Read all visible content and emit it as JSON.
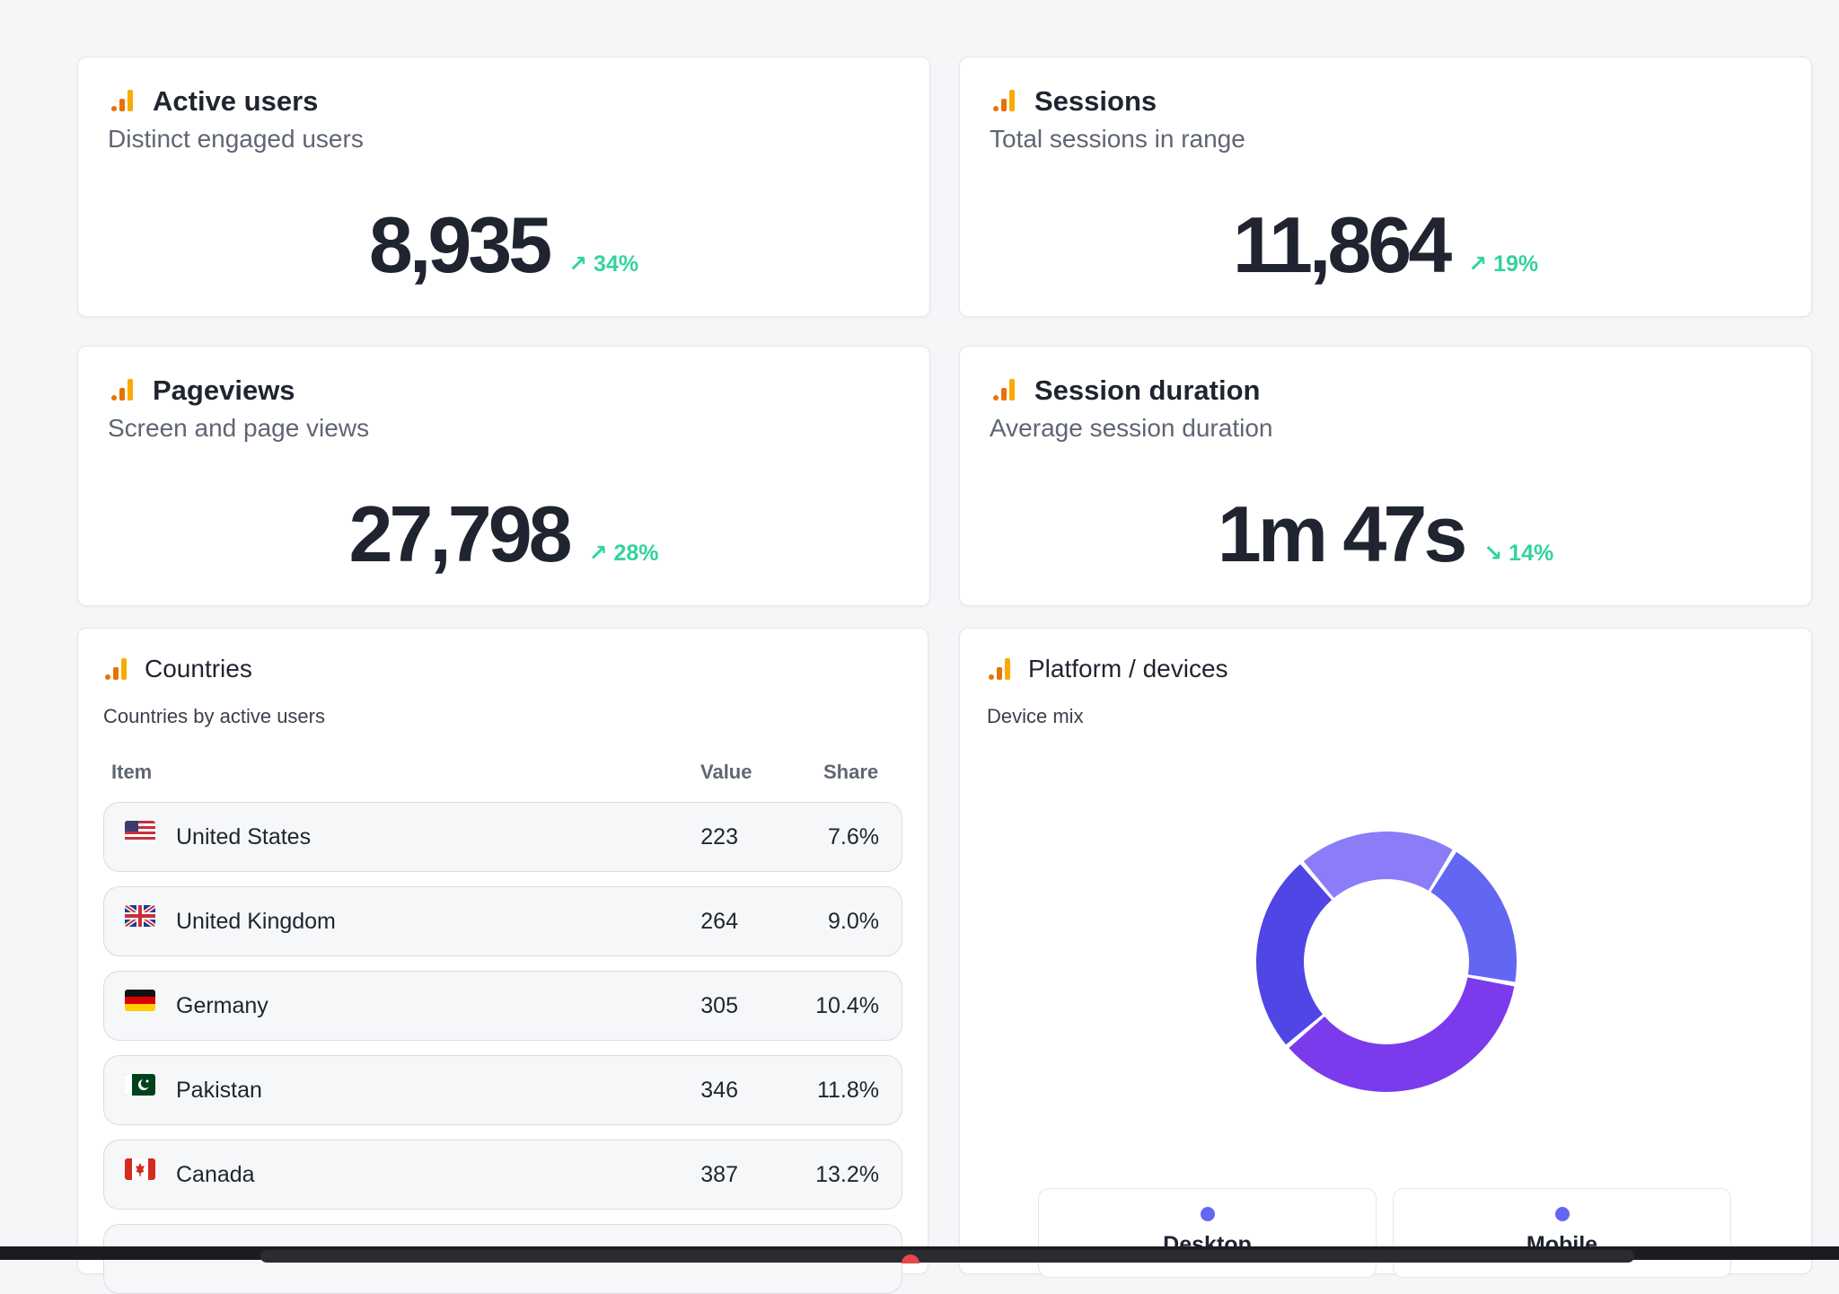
{
  "kpis": [
    {
      "title": "Active users",
      "subtitle": "Distinct engaged users",
      "value": "8,935",
      "delta": "↗ 34%",
      "trend": "up"
    },
    {
      "title": "Sessions",
      "subtitle": "Total sessions in range",
      "value": "11,864",
      "delta": "↗ 19%",
      "trend": "up"
    },
    {
      "title": "Pageviews",
      "subtitle": "Screen and page views",
      "value": "27,798",
      "delta": "↗ 28%",
      "trend": "up"
    },
    {
      "title": "Session duration",
      "subtitle": "Average session duration",
      "value": "1m 47s",
      "delta": "↘ 14%",
      "trend": "down"
    }
  ],
  "countries": {
    "title": "Countries",
    "subtitle": "Countries by active users",
    "columns": {
      "item": "Item",
      "value": "Value",
      "share": "Share"
    },
    "rows": [
      {
        "name": "United States",
        "value": "223",
        "share": "7.6%",
        "flag": "us-flag"
      },
      {
        "name": "United Kingdom",
        "value": "264",
        "share": "9.0%",
        "flag": "uk-flag"
      },
      {
        "name": "Germany",
        "value": "305",
        "share": "10.4%",
        "flag": "de-flag"
      },
      {
        "name": "Pakistan",
        "value": "346",
        "share": "11.8%",
        "flag": "pk-flag"
      },
      {
        "name": "Canada",
        "value": "387",
        "share": "13.2%",
        "flag": "ca-flag"
      }
    ]
  },
  "platform": {
    "title": "Platform / devices",
    "subtitle": "Device mix",
    "legend": [
      {
        "label": "Desktop",
        "color": "#6366f1"
      },
      {
        "label": "Mobile",
        "color": "#6366f1"
      }
    ]
  },
  "chart_data": {
    "type": "pie",
    "style": "donut",
    "slices": [
      {
        "share": 0.19,
        "color": "#6366f1"
      },
      {
        "share": 0.36,
        "color": "#7c3aed"
      },
      {
        "share": 0.25,
        "color": "#4f46e5"
      },
      {
        "share": 0.2,
        "color": "#8b7cf8"
      }
    ],
    "slice_order": "clockwise from top-right",
    "slice_shares_estimated": true,
    "legend_placement": "bottom"
  },
  "colors": {
    "accent_up": "#34d399",
    "icon_orange": "#e8710a",
    "icon_yellow": "#f9ab00"
  }
}
